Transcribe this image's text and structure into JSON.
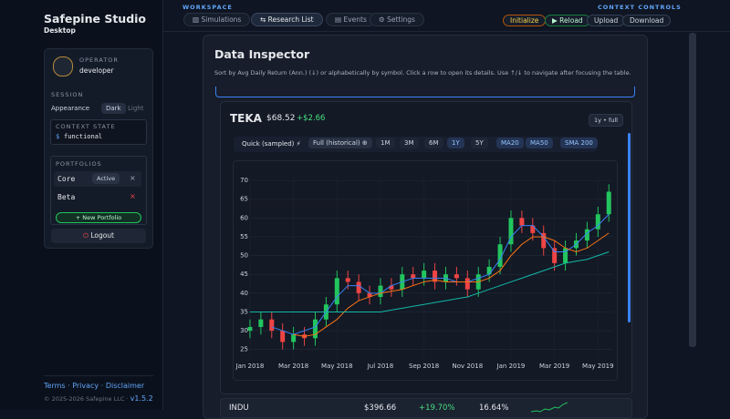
{
  "sidebar": {
    "brand": "Safepine Studio",
    "subtitle": "Desktop",
    "operator_label": "OPERATOR",
    "operator": "developer",
    "session_label": "SESSION",
    "appearance_label": "Appearance",
    "appearance_options": [
      "Dark",
      "Light"
    ],
    "context_state_label": "CONTEXT STATE",
    "context_prompt": "$",
    "context_state": "functional",
    "portfolios_label": "PORTFOLIOS",
    "portfolios": [
      {
        "name": "Core",
        "badge": "Active",
        "remove": "×"
      },
      {
        "name": "Beta",
        "remove": "×"
      }
    ],
    "new_portfolio": "+ New Portfolio",
    "logout": "Logout",
    "footer_links": [
      "Terms",
      "·",
      "Privacy",
      "·",
      "Disclaimer"
    ],
    "copyright": "© 2025-2026 Safepine LLC ·",
    "version": "v1.5.2"
  },
  "topbar": {
    "workspace_label": "WORKSPACE",
    "tabs": [
      "Simulations",
      "Research List",
      "Events",
      "Settings"
    ],
    "controls_label": "CONTEXT CONTROLS",
    "buttons": [
      "Initialize",
      "▶ Reload",
      "Upload",
      "Download"
    ]
  },
  "panel": {
    "title": "Data Inspector",
    "description": "Sort by Avg Daily Return (Ann.) (↓) or alphabetically by symbol. Click a row to open its details. Use ↑/↓ to navigate after focusing the table.",
    "detail": {
      "symbol": "TEKA",
      "price": "$68.52",
      "change": "+$2.66",
      "range_badge": "1y • full",
      "modes": [
        "Quick (sampled) ⚡",
        "Full (historical) ⊕"
      ],
      "ranges": [
        "1M",
        "3M",
        "6M",
        "1Y",
        "5Y"
      ]
    },
    "rows": [
      {
        "symbol": "INDU",
        "price": "$396.66",
        "return": "+19.70%",
        "vol": "16.64%"
      }
    ]
  },
  "chart": {
    "type": "candlestick",
    "x": [
      0,
      0.5,
      1,
      1.5,
      2,
      2.5,
      3,
      3.5,
      4,
      4.5,
      5,
      5.5,
      6,
      6.5,
      7,
      7.5,
      8,
      8.5,
      9,
      9.5,
      10,
      10.5,
      11,
      11.5,
      12,
      12.5,
      13,
      13.5,
      14,
      14.5,
      15,
      15.5,
      16,
      16.5
    ],
    "open": [
      30,
      31,
      33,
      30,
      27,
      29,
      28,
      33,
      37,
      44,
      43,
      40,
      39,
      42,
      41,
      45,
      44,
      46,
      43,
      45,
      44,
      41,
      45,
      47,
      53,
      60,
      58,
      56,
      52,
      48,
      52,
      54,
      57,
      61
    ],
    "high": [
      33,
      35,
      35,
      32,
      31,
      31,
      35,
      39,
      46,
      46,
      45,
      42,
      44,
      44,
      47,
      47,
      48,
      48,
      47,
      47,
      46,
      47,
      49,
      55,
      62,
      62,
      60,
      58,
      54,
      54,
      56,
      59,
      63,
      69
    ],
    "low": [
      28,
      29,
      28,
      25,
      25,
      26,
      26,
      31,
      35,
      41,
      38,
      37,
      37,
      39,
      39,
      42,
      42,
      41,
      41,
      42,
      39,
      39,
      43,
      45,
      51,
      56,
      54,
      50,
      46,
      46,
      50,
      52,
      55,
      59
    ],
    "close": [
      31,
      33,
      30,
      27,
      29,
      28,
      33,
      37,
      44,
      43,
      40,
      39,
      42,
      41,
      45,
      44,
      46,
      43,
      45,
      44,
      41,
      45,
      47,
      53,
      60,
      58,
      56,
      52,
      48,
      52,
      54,
      57,
      61,
      67
    ],
    "up_color": "#22c55e",
    "down_color": "#ef4444",
    "series": [
      {
        "name": "MA20",
        "color": "#3b82f6",
        "values": [
          null,
          null,
          31,
          30,
          29,
          30,
          31,
          35,
          39,
          42,
          42,
          40,
          40,
          42,
          43,
          44,
          44,
          44,
          44,
          43,
          43,
          44,
          45,
          49,
          55,
          58,
          58,
          55,
          51,
          51,
          53,
          56,
          58,
          61
        ]
      },
      {
        "name": "MA50",
        "color": "#f97316",
        "values": [
          null,
          null,
          null,
          null,
          29,
          28.5,
          29,
          31,
          33,
          36,
          38,
          39,
          40,
          40.5,
          41,
          42,
          43,
          43.5,
          43,
          43,
          43,
          43,
          44,
          46,
          50,
          53,
          55,
          55,
          54,
          52,
          51,
          52,
          54,
          56
        ]
      },
      {
        "name": "SMA 200",
        "color": "#14b8a6",
        "values": [
          35,
          35,
          35,
          35,
          35,
          35,
          35,
          35,
          35,
          35,
          35,
          35,
          35,
          35.5,
          36,
          36.5,
          37,
          37.5,
          38,
          38.5,
          39,
          40,
          41,
          42,
          43,
          44,
          45,
          46,
          47,
          48,
          48.5,
          49,
          50,
          51
        ]
      }
    ],
    "xlim": [
      -0.25,
      16.7
    ],
    "xticks": [
      {
        "value": 0,
        "label": "Jan 2018"
      },
      {
        "value": 2,
        "label": "Mar 2018"
      },
      {
        "value": 4,
        "label": "May 2018"
      },
      {
        "value": 6,
        "label": "Jul 2018"
      },
      {
        "value": 8,
        "label": "Sep 2018"
      },
      {
        "value": 10,
        "label": "Nov 2018"
      },
      {
        "value": 12,
        "label": "Jan 2019"
      },
      {
        "value": 14,
        "label": "Mar 2019"
      },
      {
        "value": 16,
        "label": "May 2019"
      }
    ],
    "ylim": [
      22.5,
      71
    ],
    "yticks": [
      25,
      30,
      35,
      40,
      45,
      50,
      55,
      60,
      65,
      70
    ],
    "grid": true
  }
}
